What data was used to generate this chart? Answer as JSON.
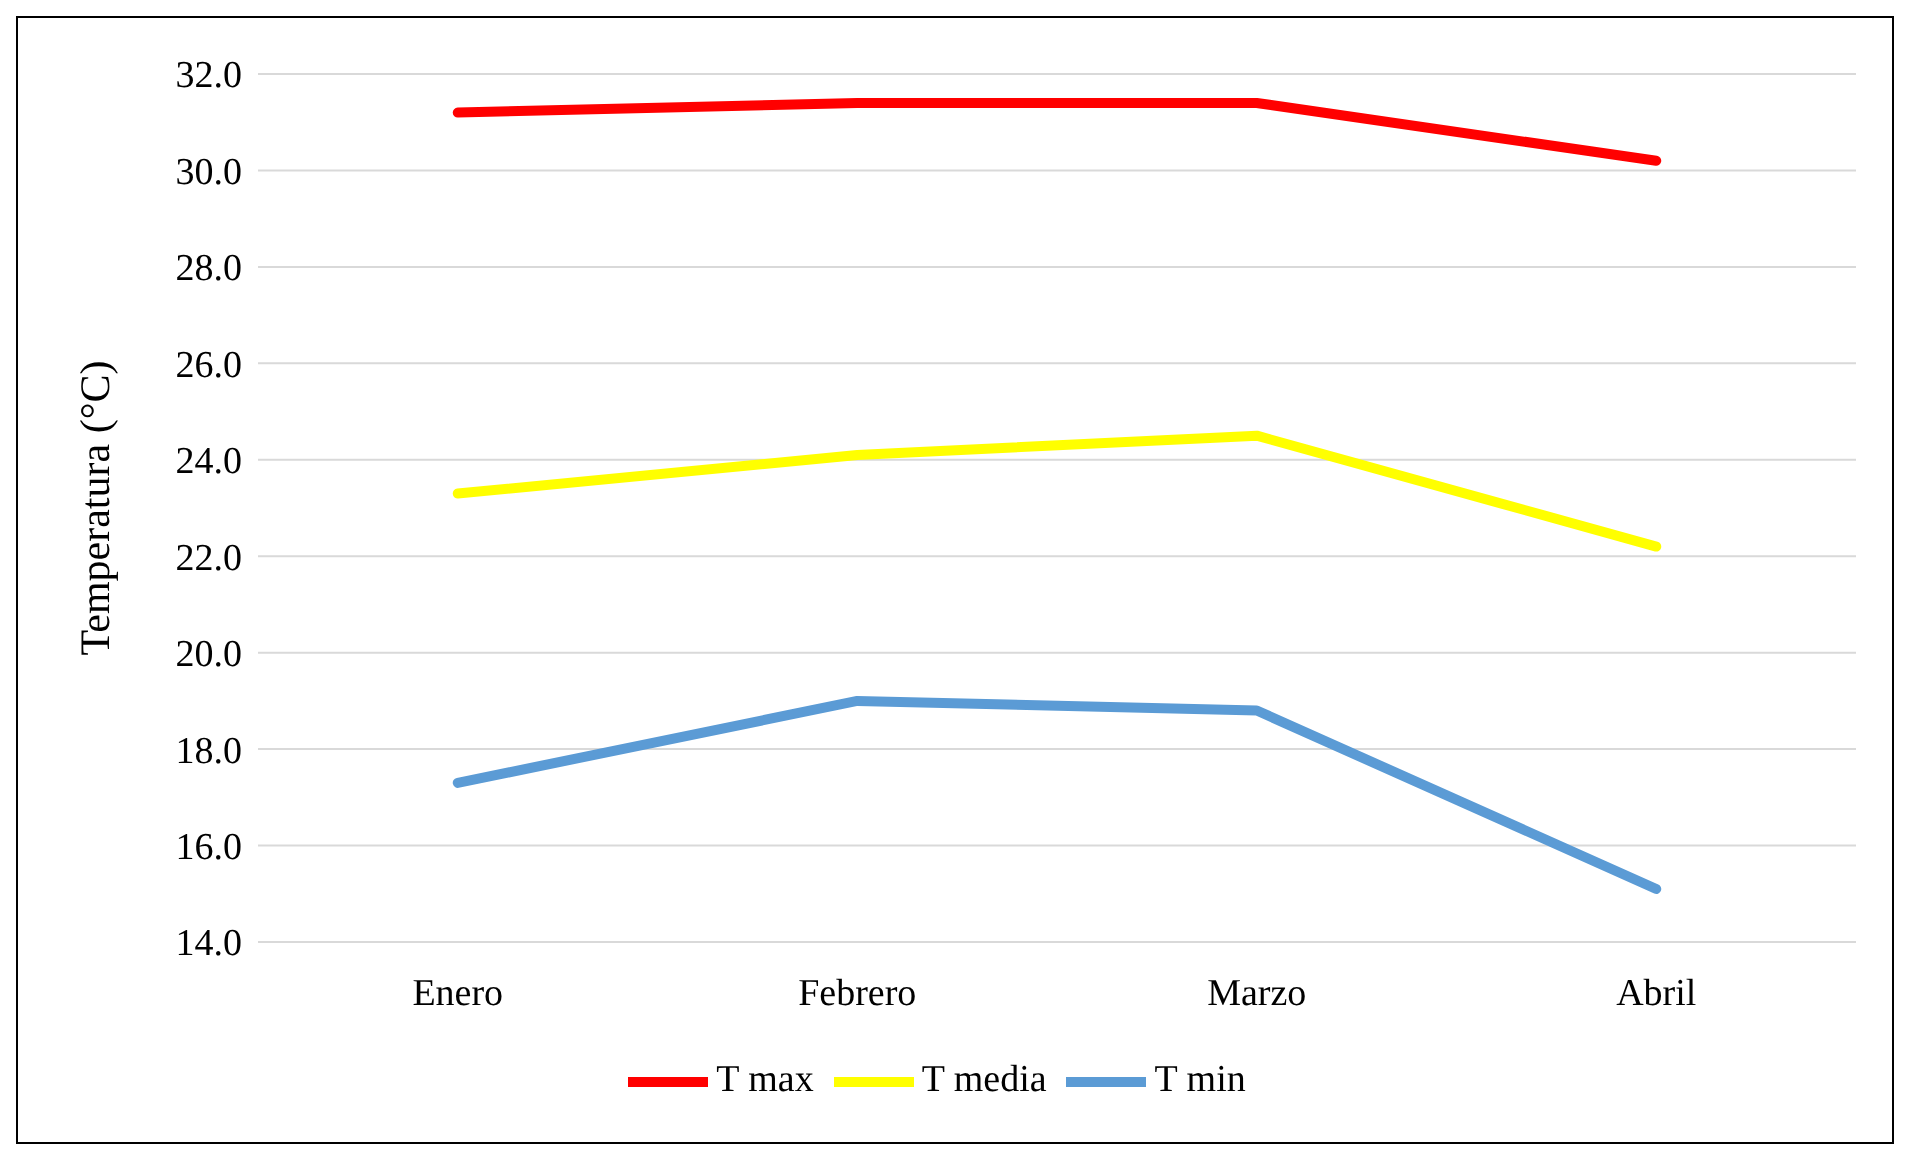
{
  "chart_data": {
    "type": "line",
    "ylabel": "Temperatura (°C)",
    "categories": [
      "Enero",
      "Febrero",
      "Marzo",
      "Abril"
    ],
    "series": [
      {
        "name": "T media",
        "color": "#ffff00",
        "values": [
          23.3,
          24.1,
          24.5,
          22.2
        ]
      },
      {
        "name": "T max",
        "color": "#ff0000",
        "values": [
          31.2,
          31.4,
          31.4,
          30.2
        ]
      },
      {
        "name": "T min",
        "color": "#5b9bd5",
        "values": [
          17.3,
          19.0,
          18.8,
          15.1
        ]
      }
    ],
    "ylim": [
      14,
      32
    ],
    "yticks": [
      {
        "value": 14,
        "label": "14.0"
      },
      {
        "value": 16,
        "label": "16.0"
      },
      {
        "value": 18,
        "label": "18.0"
      },
      {
        "value": 20,
        "label": "20.0"
      },
      {
        "value": 22,
        "label": "22.0"
      },
      {
        "value": 24,
        "label": "24.0"
      },
      {
        "value": 26,
        "label": "26.0"
      },
      {
        "value": 28,
        "label": "28.0"
      },
      {
        "value": 30,
        "label": "30.0"
      },
      {
        "value": 32,
        "label": "32.0"
      }
    ],
    "grid": "y",
    "legend": "bottom",
    "marker": "none",
    "line_style": "solid"
  }
}
